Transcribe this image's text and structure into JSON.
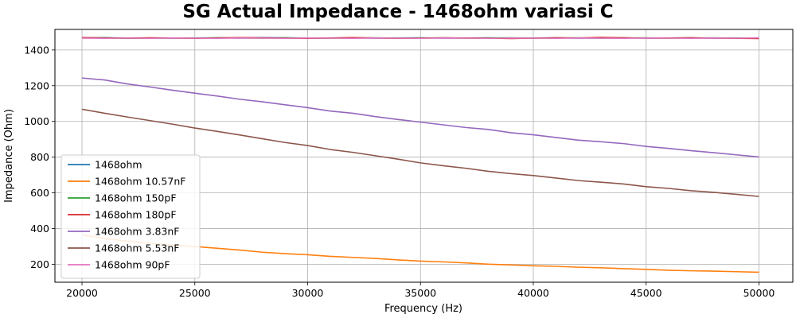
{
  "chart_data": {
    "type": "line",
    "title": "SG Actual Impedance - 1468ohm variasi C",
    "xlabel": "Frequency (Hz)",
    "ylabel": "Impedance (Ohm)",
    "xlim": [
      18800,
      51500
    ],
    "ylim": [
      100,
      1515
    ],
    "xticks": [
      20000,
      25000,
      30000,
      35000,
      40000,
      45000,
      50000
    ],
    "yticks": [
      200,
      400,
      600,
      800,
      1000,
      1200,
      1400
    ],
    "grid": true,
    "legend_position": "lower-left",
    "x": [
      20000,
      21000,
      22000,
      23000,
      24000,
      25000,
      26000,
      27000,
      28000,
      29000,
      30000,
      31000,
      32000,
      33000,
      34000,
      35000,
      36000,
      37000,
      38000,
      39000,
      40000,
      41000,
      42000,
      43000,
      44000,
      45000,
      46000,
      47000,
      48000,
      49000,
      50000
    ],
    "series": [
      {
        "name": "1468ohm",
        "color": "#1f77b4",
        "values": [
          1468,
          1469,
          1466,
          1467,
          1466,
          1467,
          1468,
          1467,
          1469,
          1468,
          1466,
          1467,
          1468,
          1466,
          1467,
          1468,
          1466,
          1467,
          1468,
          1466,
          1467,
          1468,
          1466,
          1467,
          1468,
          1466,
          1467,
          1468,
          1466,
          1467,
          1465
        ]
      },
      {
        "name": "1468ohm 10.57nF",
        "color": "#ff7f0e",
        "values": [
          365,
          345,
          330,
          318,
          308,
          300,
          290,
          280,
          268,
          260,
          254,
          245,
          239,
          233,
          225,
          218,
          214,
          208,
          201,
          197,
          192,
          189,
          184,
          181,
          176,
          172,
          167,
          164,
          162,
          159,
          156
        ]
      },
      {
        "name": "1468ohm 150pF",
        "color": "#2ca02c",
        "values": [
          1467,
          1468,
          1465,
          1466,
          1467,
          1466,
          1468,
          1467,
          1466,
          1468,
          1467,
          1466,
          1467,
          1468,
          1466,
          1467,
          1468,
          1466,
          1467,
          1468,
          1466,
          1467,
          1468,
          1466,
          1467,
          1468,
          1466,
          1467,
          1468,
          1466,
          1467
        ]
      },
      {
        "name": "1468ohm 180pF",
        "color": "#d62728",
        "values": [
          1469,
          1467,
          1466,
          1468,
          1467,
          1465,
          1467,
          1469,
          1468,
          1466,
          1465,
          1467,
          1469,
          1467,
          1465,
          1466,
          1468,
          1467,
          1466,
          1464,
          1466,
          1468,
          1467,
          1470,
          1468,
          1466,
          1467,
          1468,
          1466,
          1465,
          1464
        ]
      },
      {
        "name": "1468ohm 3.83nF",
        "color": "#9467bd",
        "values": [
          1243,
          1232,
          1210,
          1193,
          1175,
          1158,
          1142,
          1124,
          1110,
          1093,
          1077,
          1058,
          1046,
          1027,
          1011,
          996,
          981,
          966,
          955,
          937,
          925,
          910,
          895,
          886,
          876,
          860,
          849,
          836,
          825,
          813,
          801
        ]
      },
      {
        "name": "1468ohm 5.53nF",
        "color": "#8c564b",
        "values": [
          1068,
          1046,
          1025,
          1005,
          985,
          963,
          944,
          924,
          903,
          882,
          865,
          843,
          827,
          808,
          789,
          768,
          752,
          738,
          721,
          708,
          697,
          683,
          669,
          660,
          650,
          635,
          625,
          612,
          603,
          592,
          580
        ]
      },
      {
        "name": "1468ohm 90pF",
        "color": "#e377c2",
        "values": [
          1466,
          1465,
          1466,
          1465,
          1467,
          1466,
          1465,
          1467,
          1466,
          1465,
          1467,
          1466,
          1465,
          1467,
          1466,
          1465,
          1467,
          1466,
          1465,
          1467,
          1466,
          1465,
          1467,
          1466,
          1465,
          1467,
          1466,
          1465,
          1467,
          1466,
          1468
        ]
      }
    ]
  }
}
